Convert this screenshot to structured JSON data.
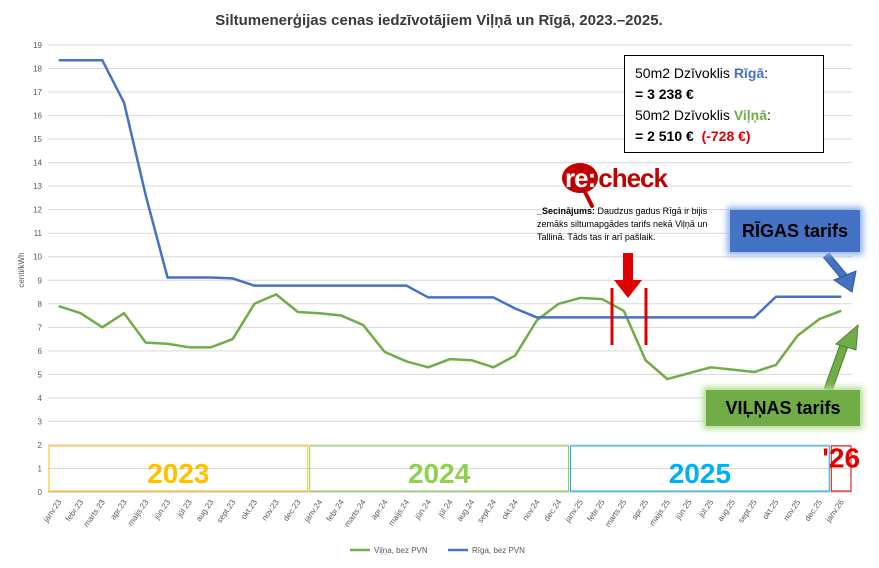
{
  "chart_data": {
    "type": "line",
    "title": "Siltumenerģijas cenas iedzīvotājiem Viļņā un Rīgā, 2023.–2025.",
    "ylabel": "centi/kWh",
    "xlabel": "",
    "ylim": [
      0,
      19
    ],
    "yticks": [
      0,
      1,
      2,
      3,
      4,
      5,
      6,
      7,
      8,
      9,
      10,
      11,
      12,
      13,
      14,
      15,
      16,
      17,
      18,
      19
    ],
    "grid": true,
    "legend_position": "bottom",
    "categories": [
      "janv.23",
      "febr.23",
      "marts.23",
      "apr.23",
      "maijs.23",
      "jūn.23",
      "jūl.23",
      "aug.23",
      "sept.23",
      "okt.23",
      "nov.23",
      "dec.23",
      "janv.24",
      "febr.24",
      "marts.24",
      "apr.24",
      "maijs.24",
      "jūn.24",
      "jūl.24",
      "aug.24",
      "sept.24",
      "okt.24",
      "nov.24",
      "dec.24",
      "janv.25",
      "febr.25",
      "marts.25",
      "apr.25",
      "maijs.25",
      "jūn.25",
      "jūl.25",
      "aug.25",
      "sept.25",
      "okt.25",
      "nov.25",
      "dec.25",
      "janv.26"
    ],
    "series": [
      {
        "name": "Viļņa, bez PVN",
        "color": "#70ad47",
        "values": [
          7.9,
          7.6,
          7.0,
          7.6,
          6.35,
          6.3,
          6.15,
          6.15,
          6.5,
          8.0,
          8.4,
          7.65,
          7.6,
          7.5,
          7.1,
          5.95,
          5.55,
          5.3,
          5.65,
          5.6,
          5.3,
          5.8,
          7.3,
          8.0,
          8.25,
          8.2,
          7.7,
          5.6,
          4.8,
          5.05,
          5.3,
          5.2,
          5.1,
          5.4,
          6.65,
          7.35,
          7.7
        ]
      },
      {
        "name": "Rīga, bez PVN",
        "color": "#4472c4",
        "values": [
          18.35,
          18.35,
          18.35,
          16.55,
          12.6,
          9.12,
          9.12,
          9.12,
          9.08,
          8.77,
          8.77,
          8.77,
          8.77,
          8.77,
          8.77,
          8.77,
          8.77,
          8.27,
          8.27,
          8.27,
          8.27,
          7.8,
          7.42,
          7.42,
          7.42,
          7.42,
          7.42,
          7.42,
          7.42,
          7.42,
          7.42,
          7.42,
          7.42,
          8.3,
          8.3,
          8.3,
          8.3
        ]
      }
    ],
    "year_bands": [
      {
        "label": "2023",
        "color": "#ffc000",
        "border": "#ffc000",
        "from": 0,
        "to": 12
      },
      {
        "label": "2024",
        "color": "#92d050",
        "border": "#92d050",
        "from": 12,
        "to": 24
      },
      {
        "label": "2025",
        "color": "#00b0f0",
        "border": "#00b0f0",
        "from": 24,
        "to": 36
      },
      {
        "label": "'26",
        "color": "#e00000",
        "border": "#e00000",
        "from": 36,
        "to": 37
      }
    ]
  },
  "info_box": {
    "line1_prefix": "50m2 Dzīvoklis ",
    "line1_city": "Rīgā",
    "line1_suffix": ":",
    "line2": " = 3 238 €",
    "line3_prefix": "50m2 Dzīvoklis ",
    "line3_city": "Viļņā",
    "line3_suffix": ":",
    "line4_value": "= 2 510 €",
    "line4_diff": "(-728 €)"
  },
  "logo": {
    "part1": "re:",
    "part2": "check"
  },
  "note": {
    "heading": "_Secinājums:",
    "text": " Daudzus gadus Rīgā ir bijis zemāks siltumapgādes tarifs nekā Viļņā un Tallinā. Tāds tas ir arī pašlaik."
  },
  "badges": {
    "riga": "RĪGAS tarifs",
    "vilna": "VIĻŅAS tarifs"
  },
  "colors": {
    "vilna": "#70ad47",
    "riga": "#4472c4",
    "accent_red": "#e00000"
  }
}
